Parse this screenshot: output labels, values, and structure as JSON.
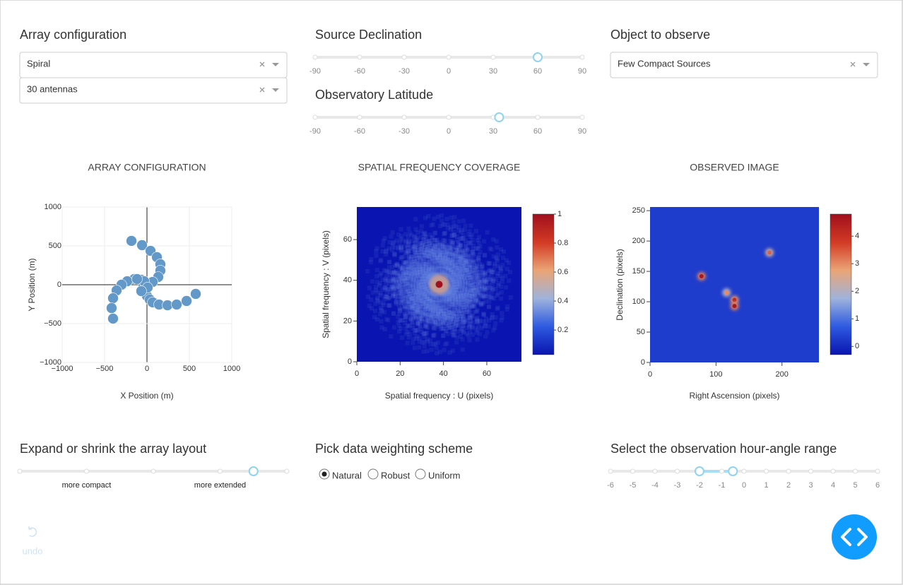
{
  "controls": {
    "array_configuration": {
      "label": "Array configuration",
      "dropdowns": [
        "Spiral",
        "30 antennas"
      ]
    },
    "source_declination": {
      "label": "Source Declination",
      "ticks": [
        -90,
        -60,
        -30,
        0,
        30,
        60,
        90
      ],
      "value": 60
    },
    "observatory_latitude": {
      "label": "Observatory Latitude",
      "ticks": [
        -90,
        -60,
        -30,
        0,
        30,
        60,
        90
      ],
      "value": 34
    },
    "object_to_observe": {
      "label": "Object to observe",
      "dropdown": "Few Compact Sources"
    },
    "array_scale": {
      "label": "Expand or shrink the array layout",
      "ticks": [
        0,
        1,
        2,
        3,
        4
      ],
      "marks": [
        {
          "value": 1,
          "label": "more compact"
        },
        {
          "value": 3,
          "label": "more extended"
        }
      ],
      "value": 3.5
    },
    "weighting": {
      "label": "Pick data weighting scheme",
      "options": [
        "Natural",
        "Robust",
        "Uniform"
      ],
      "selected": 0
    },
    "hour_angle": {
      "label": "Select the observation hour-angle range",
      "ticks": [
        -6,
        -5,
        -4,
        -3,
        -2,
        -1,
        0,
        1,
        2,
        3,
        4,
        5,
        6
      ],
      "value": [
        -2,
        -0.5
      ]
    }
  },
  "undo": "undo",
  "chart_data": [
    {
      "type": "scatter",
      "title": "ARRAY CONFIGURATION",
      "x_label": "X Position (m)",
      "y_label": "Y Position (m)",
      "x": [
        -183,
        -58,
        42,
        117,
        158,
        158,
        133,
        67,
        -67,
        -150,
        -233,
        -300,
        -358,
        -400,
        -417,
        -400,
        -42,
        -25,
        0,
        33,
        67,
        142,
        242,
        350,
        467,
        575,
        -33,
        8,
        -67,
        -117
      ],
      "y": [
        564,
        509,
        436,
        355,
        264,
        182,
        100,
        36,
        64,
        73,
        45,
        0,
        -73,
        -173,
        -300,
        -436,
        -9,
        -82,
        -145,
        -191,
        -227,
        -255,
        -264,
        -255,
        -209,
        -118,
        45,
        -36,
        -82,
        73
      ],
      "color": "#6399c8",
      "xlim": [
        -1000,
        1000
      ],
      "ylim": [
        -1000,
        1000
      ],
      "xticks": [
        {
          "value": -1000,
          "label": "−1000"
        },
        {
          "value": -500,
          "label": "−500"
        },
        0,
        500,
        1000
      ],
      "yticks": [
        {
          "value": -1000,
          "label": "−1000"
        },
        {
          "value": -500,
          "label": "−500"
        },
        0,
        500,
        1000
      ],
      "grid": true
    },
    {
      "type": "heatmap",
      "title": "SPATIAL FREQUENCY COVERAGE",
      "x_label": "Spatial frequency : U (pixels)",
      "y_label": "Spatial frequency : V (pixels)",
      "xlim": [
        0,
        76
      ],
      "ylim": [
        0,
        76
      ],
      "xticks": [
        0,
        20,
        40,
        60
      ],
      "yticks": [
        0,
        20,
        40,
        60
      ],
      "colorscale": [
        "#0a14b0",
        "#2e5ae0",
        "#9fb3dc",
        "#eaa476",
        "#d23a24",
        "#a0101e"
      ],
      "colorbar": {
        "lim": [
          0.03,
          1
        ],
        "ticks": [
          0.2,
          0.4,
          0.6,
          0.8,
          1
        ]
      }
    },
    {
      "type": "heatmap",
      "title": "OBSERVED IMAGE",
      "x_label": "Right Ascension (pixels)",
      "y_label": "Declination (pixels)",
      "xlim": [
        0,
        256
      ],
      "ylim": [
        0,
        256
      ],
      "xticks": [
        0,
        100,
        200
      ],
      "yticks": [
        0,
        50,
        100,
        150,
        200,
        250
      ],
      "colorscale": [
        "#0a14b0",
        "#2e5ae0",
        "#9fb3dc",
        "#eaa476",
        "#d23a24",
        "#a0101e"
      ],
      "colorbar": {
        "lim": [
          -0.3,
          4.8
        ],
        "ticks": [
          0,
          1,
          2,
          3,
          4
        ]
      },
      "points": [
        {
          "x": 78,
          "y": 142,
          "value": 4.6
        },
        {
          "x": 181,
          "y": 181,
          "value": 3.4
        },
        {
          "x": 116,
          "y": 115,
          "value": 3.0
        },
        {
          "x": 128,
          "y": 103,
          "value": 4.3
        },
        {
          "x": 128,
          "y": 93,
          "value": 4.6
        }
      ]
    }
  ]
}
